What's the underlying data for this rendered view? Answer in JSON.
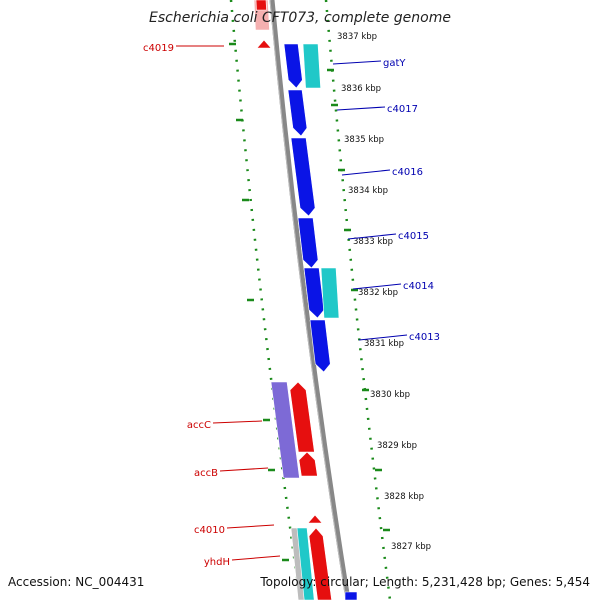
{
  "title": "Escherichia coli CFT073, complete genome",
  "footer": {
    "accession_label": "Accession:",
    "accession": "NC_004431",
    "topology_label": "Topology:",
    "topology": "circular",
    "length_label": "Length:",
    "length": "5,231,428 bp",
    "genes_label": "Genes:",
    "genes": "5,454"
  },
  "colors": {
    "forward_cds": "#0a14e6",
    "forward_rna": "#20c8c8",
    "reverse_cds": "#e60f0f",
    "reverse_other": "#7d6ad6",
    "gene_label_left": "#cc0000",
    "gene_label_right": "#0000b0",
    "gc_dots": "#1a8a1a",
    "backbone": "#888888"
  },
  "ticks": [
    {
      "label": "3837 kbp"
    },
    {
      "label": "3836 kbp"
    },
    {
      "label": "3835 kbp"
    },
    {
      "label": "3834 kbp"
    },
    {
      "label": "3833 kbp"
    },
    {
      "label": "3832 kbp"
    },
    {
      "label": "3831 kbp"
    },
    {
      "label": "3830 kbp"
    },
    {
      "label": "3829 kbp"
    },
    {
      "label": "3828 kbp"
    },
    {
      "label": "3827 kbp"
    }
  ],
  "genes_right": [
    {
      "name": "gatY"
    },
    {
      "name": "c4017"
    },
    {
      "name": "c4016"
    },
    {
      "name": "c4015"
    },
    {
      "name": "c4014"
    },
    {
      "name": "c4013"
    }
  ],
  "genes_left": [
    {
      "name": "c4019"
    },
    {
      "name": "accC"
    },
    {
      "name": "accB"
    },
    {
      "name": "c4010"
    },
    {
      "name": "yhdH"
    }
  ]
}
